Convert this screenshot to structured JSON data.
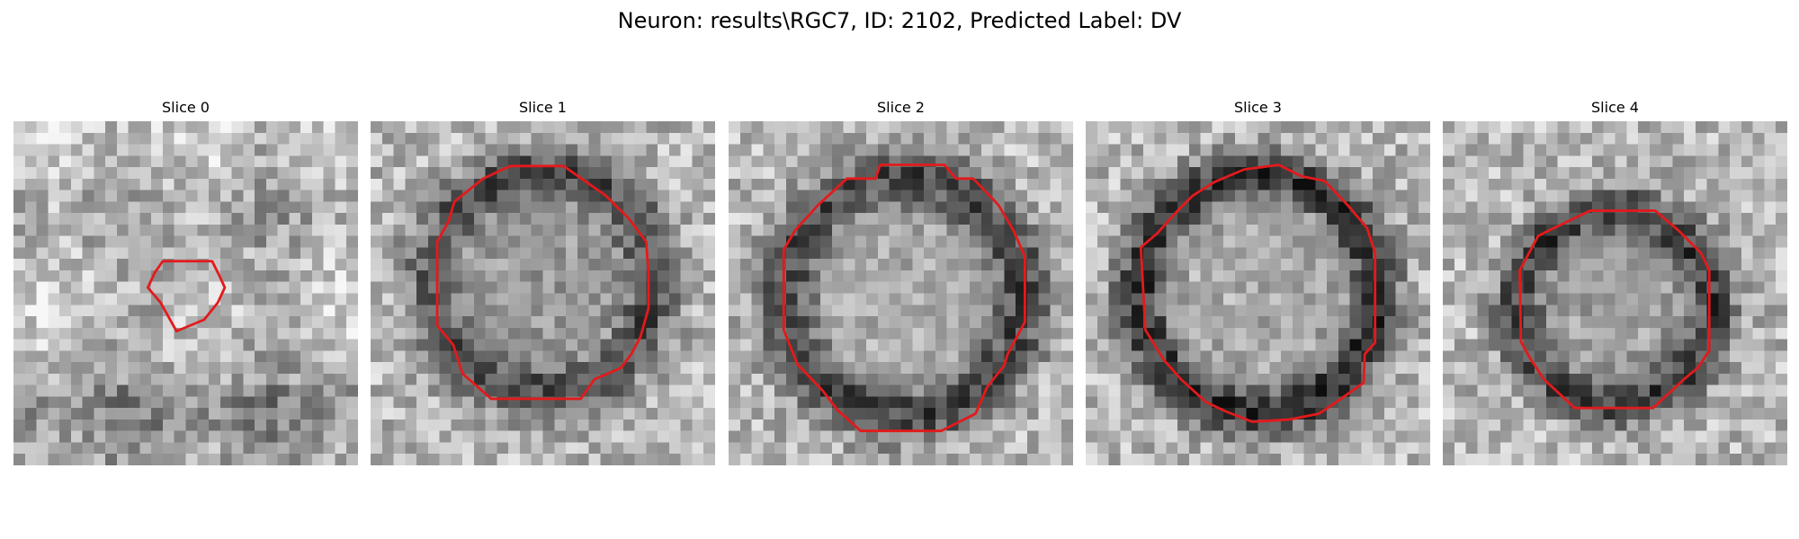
{
  "title": "Neuron: results\\RGC7, ID: 2102, Predicted Label: DV",
  "contour_color": "#e31a1c",
  "colormap": "gray",
  "grid_size": 30,
  "slices": [
    {
      "label": "Slice 0",
      "ring_strength": 0.15,
      "core_brightness": 0.55
    },
    {
      "label": "Slice 1",
      "ring_strength": 0.75,
      "core_brightness": 0.45
    },
    {
      "label": "Slice 2",
      "ring_strength": 0.8,
      "core_brightness": 0.6
    },
    {
      "label": "Slice 3",
      "ring_strength": 0.95,
      "core_brightness": 0.6
    },
    {
      "label": "Slice 4",
      "ring_strength": 0.85,
      "core_brightness": 0.5
    }
  ]
}
